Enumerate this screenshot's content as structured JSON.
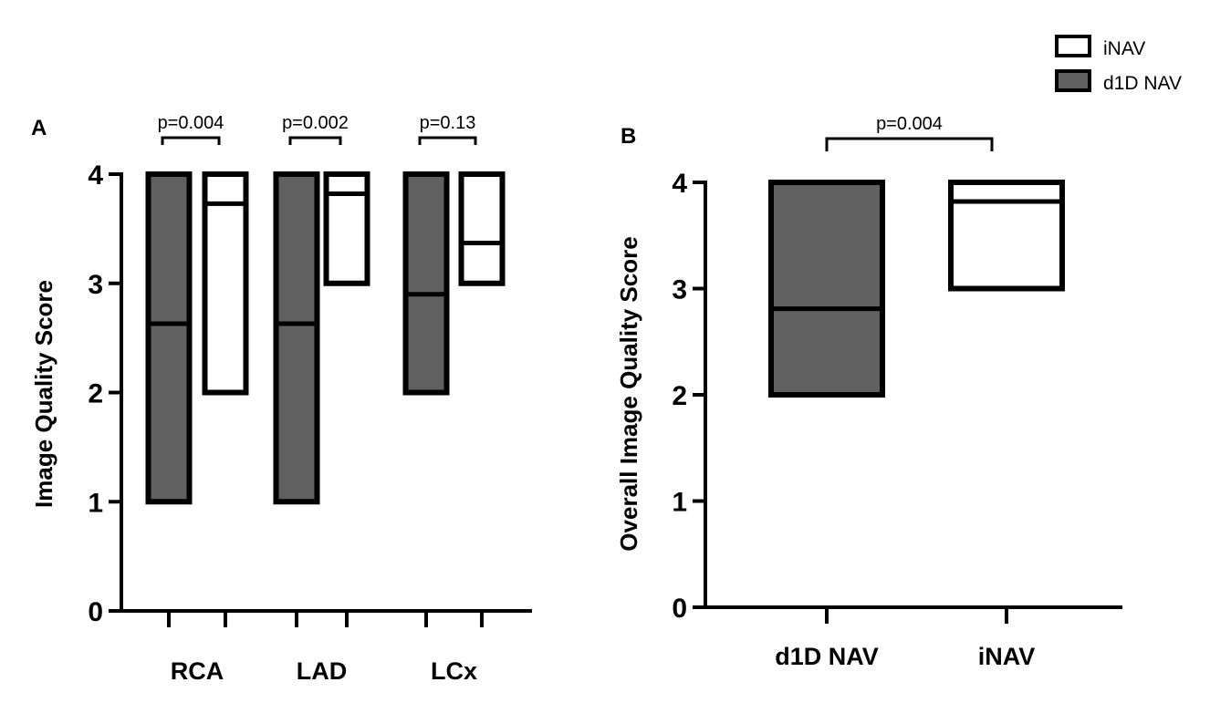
{
  "legend": {
    "items": [
      {
        "label": "iNAV",
        "color": "#ffffff"
      },
      {
        "label": "d1D NAV",
        "color": "#606060"
      }
    ]
  },
  "colors": {
    "d1D NAV": "#606060",
    "iNAV": "#ffffff",
    "stroke": "#000000"
  },
  "chart_data": [
    {
      "type": "floating-bar",
      "panel": "A",
      "title": "",
      "xlabel": "",
      "ylabel": "Image Quality Score",
      "ylim": [
        0,
        4
      ],
      "yticks": [
        "0",
        "1",
        "2",
        "3",
        "4"
      ],
      "categories": [
        "RCA",
        "LAD",
        "LCx"
      ],
      "series": [
        {
          "name": "d1D NAV",
          "min": [
            1,
            1,
            2
          ],
          "max": [
            4,
            4,
            4
          ],
          "median": [
            2.63,
            2.63,
            2.9
          ]
        },
        {
          "name": "iNAV",
          "min": [
            2,
            3,
            3
          ],
          "max": [
            4,
            4,
            4
          ],
          "median": [
            3.73,
            3.82,
            3.37
          ]
        }
      ],
      "annotations": [
        "p=0.004",
        "p=0.002",
        "p=0.13"
      ]
    },
    {
      "type": "floating-bar",
      "panel": "B",
      "title": "",
      "xlabel": "",
      "ylabel": "Overall Image Quality Score",
      "ylim": [
        0,
        4
      ],
      "yticks": [
        "0",
        "1",
        "2",
        "3",
        "4"
      ],
      "categories": [
        "d1D NAV",
        "iNAV"
      ],
      "series": [
        {
          "name": "d1D NAV",
          "min": [
            2
          ],
          "max": [
            4
          ],
          "median": [
            2.81
          ]
        },
        {
          "name": "iNAV",
          "min": [
            3
          ],
          "max": [
            4
          ],
          "median": [
            3.82
          ]
        }
      ],
      "annotations": [
        "p=0.004"
      ]
    }
  ]
}
